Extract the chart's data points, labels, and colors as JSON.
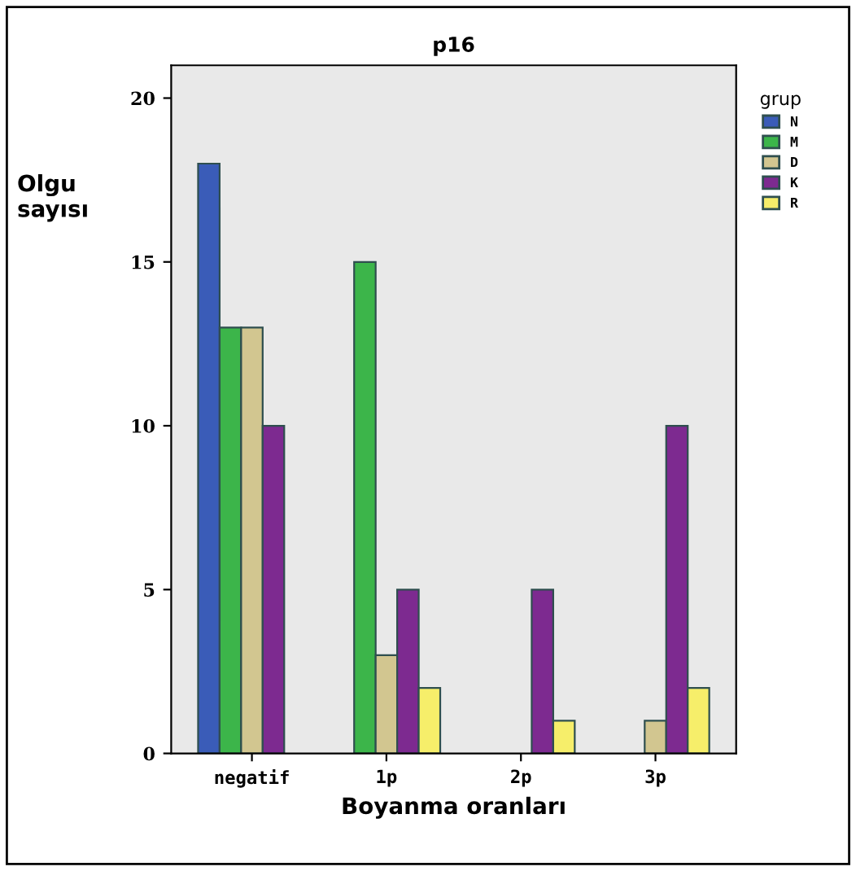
{
  "chart_data": {
    "type": "bar",
    "title": "p16",
    "xlabel": "Boyanma oranları",
    "ylabel": "Olgu\nsayısı",
    "legend_title": "grup",
    "categories": [
      "negatif",
      "1p",
      "2p",
      "3p"
    ],
    "series": [
      {
        "name": "N",
        "color": "#3a5cb8",
        "values": [
          18,
          null,
          null,
          null
        ]
      },
      {
        "name": "M",
        "color": "#3cb54a",
        "values": [
          13,
          15,
          null,
          null
        ]
      },
      {
        "name": "D",
        "color": "#d2c690",
        "values": [
          13,
          3,
          null,
          1
        ]
      },
      {
        "name": "K",
        "color": "#7d2a90",
        "values": [
          10,
          5,
          5,
          10
        ]
      },
      {
        "name": "R",
        "color": "#f6ee6a",
        "values": [
          null,
          2,
          1,
          2
        ]
      }
    ],
    "ylim": [
      0,
      21
    ],
    "yticks": [
      0,
      5,
      10,
      15,
      20
    ],
    "grid": false,
    "legend": "right"
  }
}
